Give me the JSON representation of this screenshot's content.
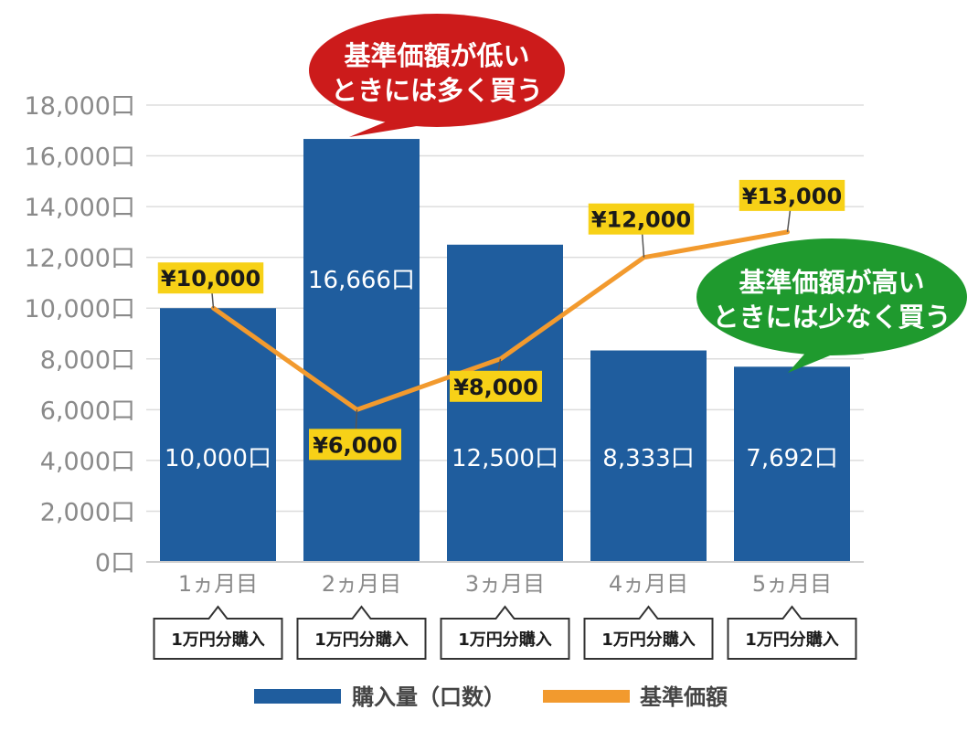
{
  "chart_data": {
    "type": "bar",
    "categories": [
      "1ヵ月目",
      "2ヵ月目",
      "3ヵ月目",
      "4ヵ月目",
      "5ヵ月目"
    ],
    "series": [
      {
        "name": "購入量（口数）",
        "kind": "bar",
        "color": "#1f5d9e",
        "values": [
          10000,
          16666,
          12500,
          8333,
          7692
        ],
        "labels": [
          "10,000口",
          "16,666口",
          "12,500口",
          "8,333口",
          "7,692口"
        ]
      },
      {
        "name": "基準価額",
        "kind": "line",
        "color": "#f29a2e",
        "values": [
          10000,
          6000,
          8000,
          12000,
          13000
        ],
        "labels": [
          "¥10,000",
          "¥6,000",
          "¥8,000",
          "¥12,000",
          "¥13,000"
        ]
      }
    ],
    "ylim": [
      0,
      18000
    ],
    "yticks": [
      "0口",
      "2,000口",
      "4,000口",
      "6,000口",
      "8,000口",
      "10,000口",
      "12,000口",
      "14,000口",
      "16,000口",
      "18,000口"
    ],
    "grid": true,
    "purchase_note": "1万円分購入",
    "annotations": [
      {
        "text": [
          "基準価額が低い",
          "ときには多く買う"
        ],
        "color": "#cc1b1b"
      },
      {
        "text": [
          "基準価額が高い",
          "ときには少なく買う"
        ],
        "color": "#1f9a2e"
      }
    ],
    "legend_position": "bottom"
  },
  "colors": {
    "bar": "#1f5d9e",
    "line": "#f29a2e",
    "price_tag": "#f7d117",
    "grid": "#dddddd",
    "text_gray": "#8a8a8a"
  }
}
